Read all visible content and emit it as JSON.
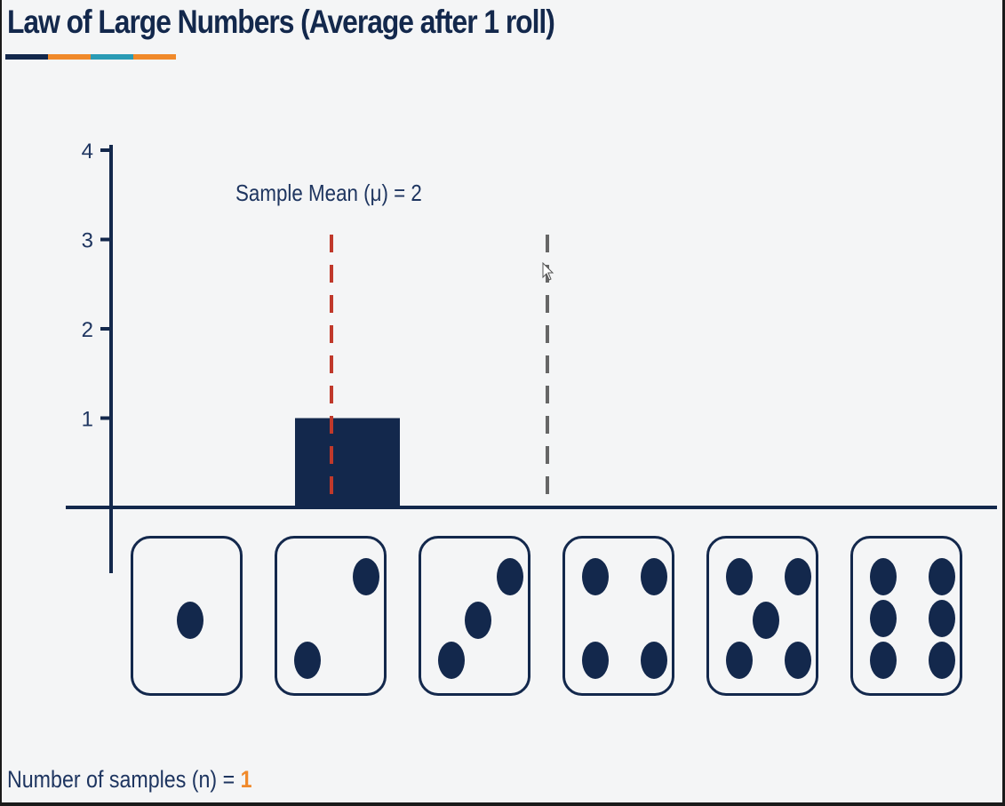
{
  "title": "Law of Large Numbers (Average after 1 roll)",
  "title_underline_colors": [
    "#13284c",
    "#f0892a",
    "#2a9bb5",
    "#f0892a"
  ],
  "mean_label": "Sample Mean (μ) = 2",
  "samples": {
    "label": "Number of samples (n) = ",
    "value": "1"
  },
  "colors": {
    "bar": "#13284c",
    "axis": "#13284c",
    "sample_mean_line": "#c0392b",
    "expected_mean_line": "#666666",
    "accent": "#f0892a"
  },
  "dice": [
    {
      "face": 1,
      "icon": "die-face-1-icon"
    },
    {
      "face": 2,
      "icon": "die-face-2-icon"
    },
    {
      "face": 3,
      "icon": "die-face-3-icon"
    },
    {
      "face": 4,
      "icon": "die-face-4-icon"
    },
    {
      "face": 5,
      "icon": "die-face-5-icon"
    },
    {
      "face": 6,
      "icon": "die-face-6-icon"
    }
  ],
  "chart_data": {
    "type": "bar",
    "categories": [
      "1",
      "2",
      "3",
      "4",
      "5",
      "6"
    ],
    "values": [
      0,
      1,
      0,
      0,
      0,
      0
    ],
    "title": "Law of Large Numbers (Average after 1 roll)",
    "xlabel": "",
    "ylabel": "",
    "ylim": [
      0,
      4
    ],
    "yticks": [
      1,
      2,
      3,
      4
    ],
    "grid": false,
    "sample_mean": 2,
    "expected_mean": 3.5,
    "annotations": [
      "Sample Mean (μ) = 2"
    ]
  }
}
